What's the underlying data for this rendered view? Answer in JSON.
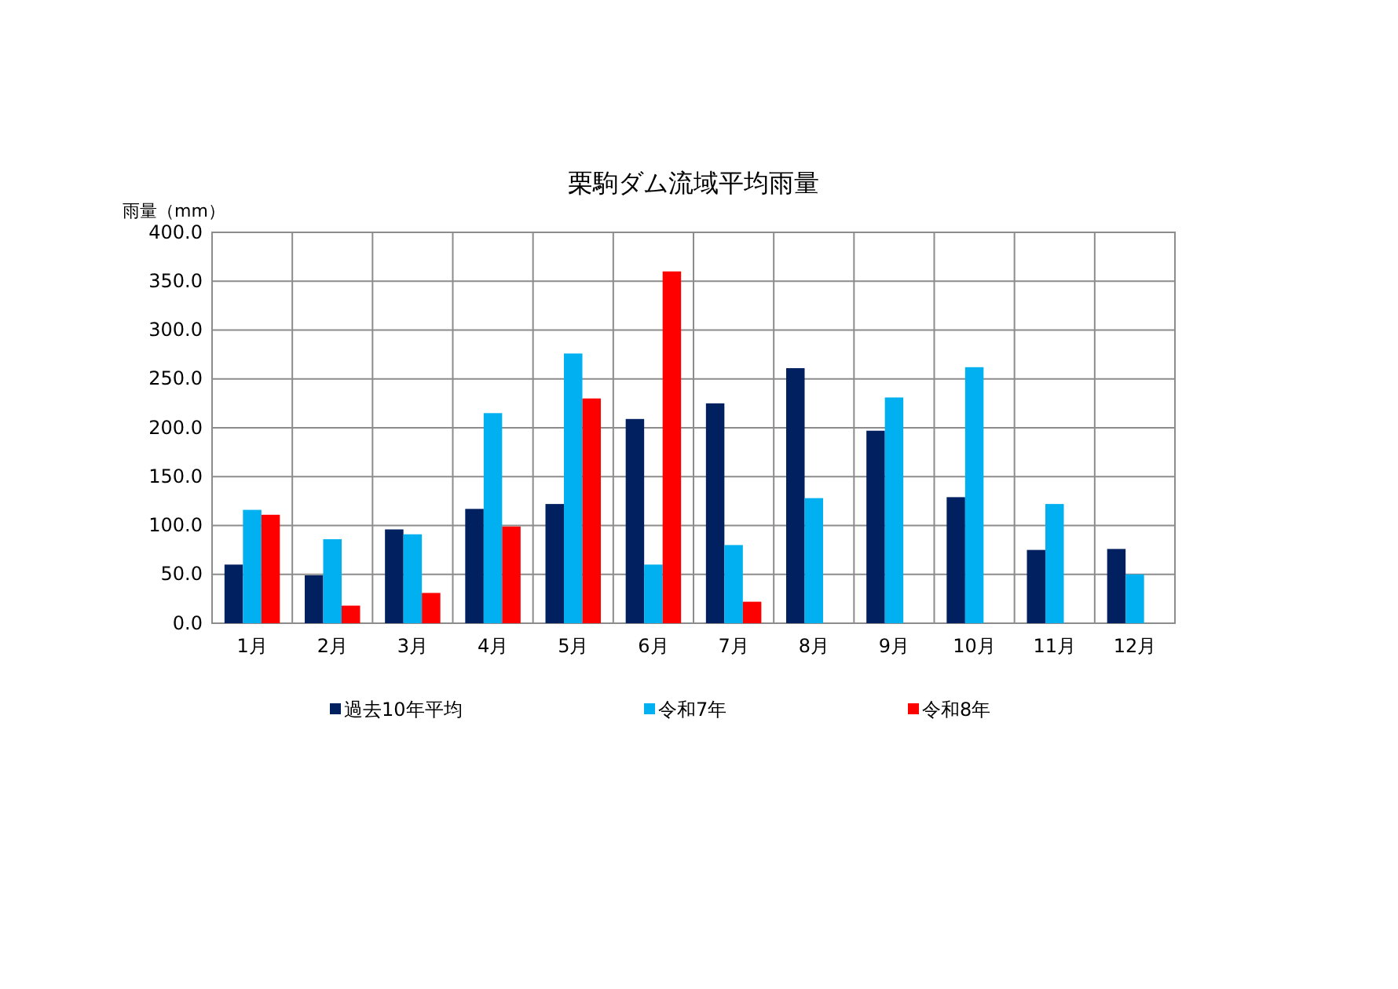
{
  "chart_data": {
    "type": "bar",
    "title": "栗駒ダム流域平均雨量",
    "ylabel": "雨量（mm）",
    "categories": [
      "1月",
      "2月",
      "3月",
      "4月",
      "5月",
      "6月",
      "7月",
      "8月",
      "9月",
      "10月",
      "11月",
      "12月"
    ],
    "series": [
      {
        "name": "過去10年平均",
        "color": "#002060",
        "values": [
          60,
          49,
          96,
          117,
          122,
          209,
          225,
          261,
          197,
          129,
          75,
          76
        ]
      },
      {
        "name": "令和7年",
        "color": "#00b0f0",
        "values": [
          116,
          86,
          91,
          215,
          276,
          60,
          80,
          128,
          231,
          262,
          122,
          50
        ]
      },
      {
        "name": "令和8年",
        "color": "#ff0000",
        "values": [
          111,
          18,
          31,
          99,
          230,
          360,
          22,
          null,
          null,
          null,
          null,
          null
        ]
      }
    ],
    "ylim": [
      0,
      400
    ],
    "yticks": [
      {
        "value": 0,
        "label": "0.0"
      },
      {
        "value": 50,
        "label": "50.0"
      },
      {
        "value": 100,
        "label": "100.0"
      },
      {
        "value": 150,
        "label": "150.0"
      },
      {
        "value": 200,
        "label": "200.0"
      },
      {
        "value": 250,
        "label": "250.0"
      },
      {
        "value": 300,
        "label": "300.0"
      },
      {
        "value": 350,
        "label": "350.0"
      },
      {
        "value": 400,
        "label": "400.0"
      }
    ],
    "grid": true,
    "legend": "bottom"
  }
}
